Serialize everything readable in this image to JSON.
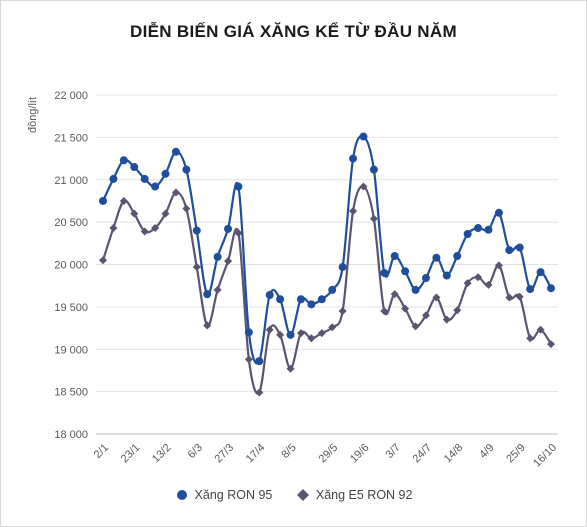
{
  "chart_data": {
    "type": "line",
    "title": "DIỄN BIẾN GIÁ XĂNG KỂ TỪ ĐẦU NĂM",
    "ylabel": "đồng/lít",
    "xlabel": "",
    "ylim": [
      18000,
      22000
    ],
    "yticks": [
      "22 000",
      "21 500",
      "21 000",
      "20 500",
      "20 000",
      "19 500",
      "19 000",
      "18 500",
      "18 000"
    ],
    "xtick_labels": [
      "2/1",
      "23/1",
      "13/2",
      "6/3",
      "27/3",
      "17/4",
      "8/5",
      "29/5",
      "19/6",
      "3/7",
      "24/7",
      "14/8",
      "4/9",
      "25/9",
      "16/10"
    ],
    "grid": true,
    "legend_position": "bottom",
    "series": [
      {
        "name": "Xăng RON 95",
        "color": "#1f4e9c",
        "marker": "circle",
        "values": [
          20750,
          21010,
          21230,
          21150,
          21010,
          20920,
          21070,
          21330,
          21120,
          20400,
          19650,
          20090,
          20420,
          20920,
          19200,
          18860,
          19640,
          19590,
          19170,
          19590,
          19530,
          19590,
          19700,
          19970,
          21250,
          21510,
          21120,
          19900,
          20100,
          19920,
          19700,
          19840,
          20080,
          19870,
          20100,
          20360,
          20430,
          20410,
          20610,
          20170,
          20200,
          19710,
          19910,
          19720
        ]
      },
      {
        "name": "Xăng E5 RON 92",
        "color": "#5a5470",
        "marker": "diamond",
        "values": [
          20050,
          20430,
          20750,
          20600,
          20390,
          20430,
          20600,
          20850,
          20660,
          19970,
          19280,
          19700,
          20040,
          20370,
          18880,
          18490,
          19230,
          19170,
          18770,
          19190,
          19130,
          19190,
          19260,
          19450,
          20630,
          20920,
          20540,
          19450,
          19650,
          19480,
          19270,
          19400,
          19610,
          19350,
          19460,
          19780,
          19850,
          19760,
          19990,
          19610,
          19620,
          19130,
          19230,
          19060
        ]
      }
    ]
  }
}
